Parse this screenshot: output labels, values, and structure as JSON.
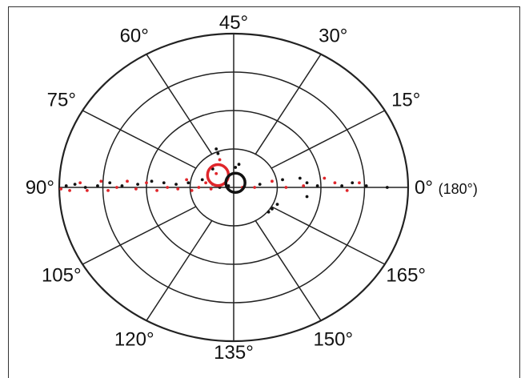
{
  "chart_data": {
    "type": "scatter",
    "coordinate_system": "polar",
    "angle_labels": [
      {
        "angle": 0,
        "text": "0° (180°)"
      },
      {
        "angle": 15,
        "text": "15°"
      },
      {
        "angle": 30,
        "text": "30°"
      },
      {
        "angle": 45,
        "text": "45°"
      },
      {
        "angle": 60,
        "text": "60°"
      },
      {
        "angle": 75,
        "text": "75°"
      },
      {
        "angle": 90,
        "text": "90°"
      },
      {
        "angle": 105,
        "text": "105°"
      },
      {
        "angle": 120,
        "text": "120°"
      },
      {
        "angle": 135,
        "text": "135°"
      },
      {
        "angle": 150,
        "text": "150°"
      },
      {
        "angle": 165,
        "text": "165°"
      }
    ],
    "rings": 4,
    "colors": {
      "black": "#111111",
      "red": "#e0262b",
      "grid": "#222222"
    },
    "series": [
      {
        "color": "black",
        "points": [
          [
            -0.96,
            0.01
          ],
          [
            -0.91,
            0.02
          ],
          [
            -0.85,
            0.0
          ],
          [
            -0.78,
            0.01
          ],
          [
            -0.71,
            0.03
          ],
          [
            -0.64,
            0.01
          ],
          [
            -0.55,
            0.02
          ],
          [
            -0.47,
            0.04
          ],
          [
            -0.4,
            0.03
          ],
          [
            -0.33,
            0.02
          ],
          [
            -0.26,
            0.03
          ],
          [
            -0.18,
            0.05
          ],
          [
            -0.12,
            0.02
          ],
          [
            -0.08,
            0.0
          ],
          [
            -0.03,
            0.01
          ],
          [
            -0.1,
            0.25
          ],
          [
            -0.09,
            0.22
          ],
          [
            -0.12,
            0.12
          ],
          [
            0.01,
            0.13
          ],
          [
            0.03,
            0.15
          ],
          [
            0.15,
            0.02
          ],
          [
            0.28,
            0.05
          ],
          [
            0.38,
            0.06
          ],
          [
            0.42,
            0.03
          ],
          [
            0.48,
            0.01
          ],
          [
            0.62,
            0.01
          ],
          [
            0.68,
            0.03
          ],
          [
            0.76,
            0.01
          ],
          [
            0.88,
            0.0
          ],
          [
            0.42,
            -0.06
          ],
          [
            0.25,
            -0.11
          ],
          [
            0.22,
            -0.14
          ],
          [
            0.2,
            -0.16
          ]
        ]
      },
      {
        "color": "red",
        "points": [
          [
            -0.99,
            -0.01
          ],
          [
            -0.94,
            -0.02
          ],
          [
            -0.88,
            0.03
          ],
          [
            -0.84,
            -0.02
          ],
          [
            -0.76,
            0.04
          ],
          [
            -0.72,
            -0.02
          ],
          [
            -0.67,
            0.0
          ],
          [
            -0.61,
            0.04
          ],
          [
            -0.56,
            -0.01
          ],
          [
            -0.5,
            0.03
          ],
          [
            -0.44,
            -0.02
          ],
          [
            -0.38,
            0.0
          ],
          [
            -0.32,
            -0.01
          ],
          [
            -0.27,
            0.05
          ],
          [
            -0.24,
            -0.02
          ],
          [
            -0.2,
            0.0
          ],
          [
            -0.16,
            0.03
          ],
          [
            -0.13,
            -0.01
          ],
          [
            -0.1,
            0.09
          ],
          [
            -0.08,
            0.18
          ],
          [
            -0.04,
            0.05
          ],
          [
            0.05,
            0.0
          ],
          [
            0.12,
            0.0
          ],
          [
            0.22,
            0.04
          ],
          [
            0.3,
            0.0
          ],
          [
            0.4,
            0.01
          ],
          [
            0.52,
            0.06
          ],
          [
            0.58,
            0.03
          ],
          [
            0.65,
            -0.02
          ],
          [
            0.72,
            0.03
          ]
        ]
      }
    ],
    "mean_circles": [
      {
        "color": "red",
        "x": -0.09,
        "y": 0.08,
        "r": 0.06
      },
      {
        "color": "black",
        "x": 0.01,
        "y": 0.03,
        "r": 0.055
      }
    ]
  }
}
